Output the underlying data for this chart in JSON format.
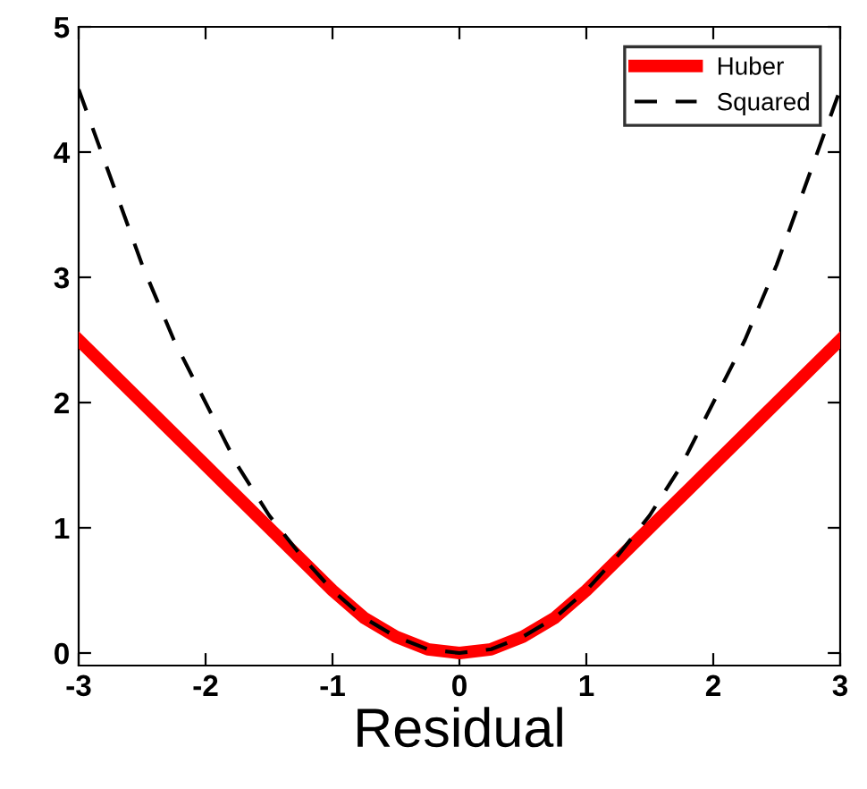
{
  "chart_data": {
    "type": "line",
    "xlabel": "Residual",
    "x": [
      -3,
      -2.75,
      -2.5,
      -2.25,
      -2,
      -1.75,
      -1.5,
      -1.25,
      -1,
      -0.75,
      -0.5,
      -0.25,
      0,
      0.25,
      0.5,
      0.75,
      1,
      1.25,
      1.5,
      1.75,
      2,
      2.25,
      2.5,
      2.75,
      3
    ],
    "series": [
      {
        "name": "Huber",
        "color": "#ff0000",
        "line_style": "solid",
        "values": [
          2.5,
          2.25,
          2.0,
          1.75,
          1.5,
          1.25,
          1.0,
          0.75,
          0.5,
          0.28,
          0.13,
          0.03,
          0,
          0.03,
          0.13,
          0.28,
          0.5,
          0.75,
          1.0,
          1.25,
          1.5,
          1.75,
          2.0,
          2.25,
          2.5
        ]
      },
      {
        "name": "Squared",
        "color": "#000000",
        "line_style": "dashed",
        "values": [
          4.5,
          3.8,
          3.1,
          2.5,
          2.0,
          1.5,
          1.1,
          0.78,
          0.5,
          0.28,
          0.13,
          0.03,
          0,
          0.03,
          0.13,
          0.28,
          0.5,
          0.78,
          1.1,
          1.5,
          2.0,
          2.5,
          3.1,
          3.8,
          4.5
        ]
      }
    ],
    "xlim": [
      -3,
      3
    ],
    "ylim": [
      -0.1,
      5
    ],
    "xticks": [
      -3,
      -2,
      -1,
      0,
      1,
      2,
      3
    ],
    "yticks": [
      0,
      1,
      2,
      3,
      4,
      5
    ],
    "grid": false,
    "legend": "top right",
    "marker": "none"
  }
}
